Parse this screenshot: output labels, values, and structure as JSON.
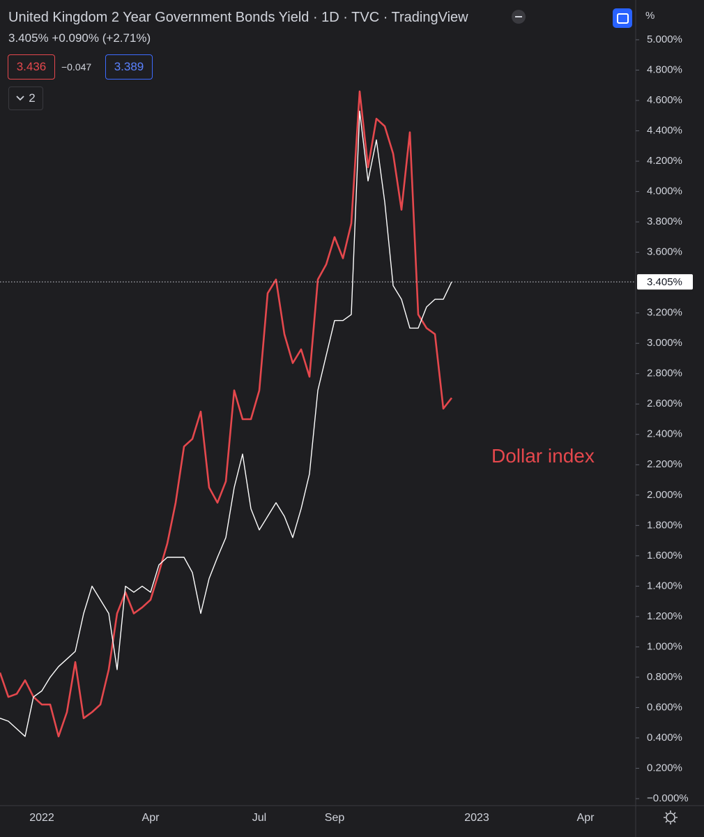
{
  "chart_data": {
    "type": "line",
    "title": "United Kingdom 2 Year Government Bonds Yield · 1D · TVC · TradingView",
    "price": "3.405%",
    "change": "+0.090%",
    "change_pct": "(+2.71%)",
    "compare_value": "3.436",
    "compare_diff": "−0.047",
    "compare_base": "3.389",
    "collapsed_count": "2",
    "unit": "%",
    "annotation": "Dollar index",
    "last_price": {
      "value": 3.405,
      "label": "3.405%"
    },
    "categories": [
      null,
      null,
      null,
      null,
      null,
      "2022",
      null,
      null,
      null,
      null,
      null,
      null,
      null,
      null,
      null,
      null,
      null,
      null,
      "Apr",
      null,
      null,
      null,
      null,
      null,
      null,
      null,
      null,
      null,
      null,
      null,
      null,
      "Jul",
      null,
      null,
      null,
      null,
      null,
      null,
      null,
      null,
      "Sep",
      null,
      null,
      null,
      null,
      null,
      null,
      null,
      null,
      null,
      null,
      null,
      null,
      null,
      null,
      null,
      null,
      "2023",
      null,
      null,
      null,
      null,
      null,
      null,
      null,
      null,
      null,
      null,
      null,
      null,
      "Apr",
      null,
      null,
      null,
      null,
      null,
      null
    ],
    "series": [
      {
        "color": "#e5484d",
        "values": [
          0.83,
          0.67,
          0.69,
          0.78,
          0.67,
          0.62,
          0.62,
          0.41,
          0.57,
          0.9,
          0.53,
          0.57,
          0.62,
          0.85,
          1.22,
          1.36,
          1.22,
          1.26,
          1.31,
          1.49,
          1.68,
          1.95,
          2.32,
          2.37,
          2.55,
          2.05,
          1.95,
          2.09,
          2.69,
          2.5,
          2.5,
          2.69,
          3.33,
          3.42,
          3.06,
          2.87,
          2.96,
          2.78,
          3.42,
          3.52,
          3.7,
          3.56,
          3.79,
          4.66,
          4.16,
          4.48,
          4.43,
          4.25,
          3.88,
          4.39,
          3.19,
          3.1,
          3.06,
          2.57,
          2.64,
          null,
          null,
          null,
          null,
          null,
          null,
          null,
          null,
          null,
          null,
          null,
          null,
          null,
          null,
          null,
          null,
          null,
          null,
          null,
          null,
          null,
          null
        ]
      },
      {
        "color": "#ffffff",
        "values": [
          0.53,
          0.51,
          0.46,
          0.41,
          0.67,
          0.71,
          0.8,
          0.87,
          0.92,
          0.97,
          1.22,
          1.4,
          1.31,
          1.22,
          0.85,
          1.4,
          1.36,
          1.4,
          1.36,
          1.54,
          1.59,
          1.59,
          1.59,
          1.49,
          1.22,
          1.45,
          1.59,
          1.72,
          2.05,
          2.27,
          1.91,
          1.77,
          1.86,
          1.95,
          1.86,
          1.72,
          1.91,
          2.14,
          2.69,
          2.92,
          3.15,
          3.15,
          3.19,
          4.53,
          4.07,
          4.34,
          3.93,
          3.38,
          3.29,
          3.1,
          3.1,
          3.24,
          3.29,
          3.29,
          3.405,
          null,
          null,
          null,
          null,
          null,
          null,
          null,
          null,
          null,
          null,
          null,
          null,
          null,
          null,
          null,
          null,
          null,
          null,
          null,
          null,
          null,
          null
        ]
      }
    ],
    "ylim": [
      -0.046,
      5.262
    ],
    "yticks": [
      {
        "value": 5.0,
        "label": "5.000%"
      },
      {
        "value": 4.8,
        "label": "4.800%"
      },
      {
        "value": 4.6,
        "label": "4.600%"
      },
      {
        "value": 4.4,
        "label": "4.400%"
      },
      {
        "value": 4.2,
        "label": "4.200%"
      },
      {
        "value": 4.0,
        "label": "4.000%"
      },
      {
        "value": 3.8,
        "label": "3.800%"
      },
      {
        "value": 3.6,
        "label": "3.600%"
      },
      {
        "value": 3.2,
        "label": "3.200%"
      },
      {
        "value": 3.0,
        "label": "3.000%"
      },
      {
        "value": 2.8,
        "label": "2.800%"
      },
      {
        "value": 2.6,
        "label": "2.600%"
      },
      {
        "value": 2.4,
        "label": "2.400%"
      },
      {
        "value": 2.2,
        "label": "2.200%"
      },
      {
        "value": 2.0,
        "label": "2.000%"
      },
      {
        "value": 1.8,
        "label": "1.800%"
      },
      {
        "value": 1.6,
        "label": "1.600%"
      },
      {
        "value": 1.4,
        "label": "1.400%"
      },
      {
        "value": 1.2,
        "label": "1.200%"
      },
      {
        "value": 1.0,
        "label": "1.000%"
      },
      {
        "value": 0.8,
        "label": "0.800%"
      },
      {
        "value": 0.6,
        "label": "0.600%"
      },
      {
        "value": 0.4,
        "label": "0.400%"
      },
      {
        "value": 0.2,
        "label": "0.200%"
      },
      {
        "value": 0,
        "label": "−0.000%"
      }
    ]
  }
}
